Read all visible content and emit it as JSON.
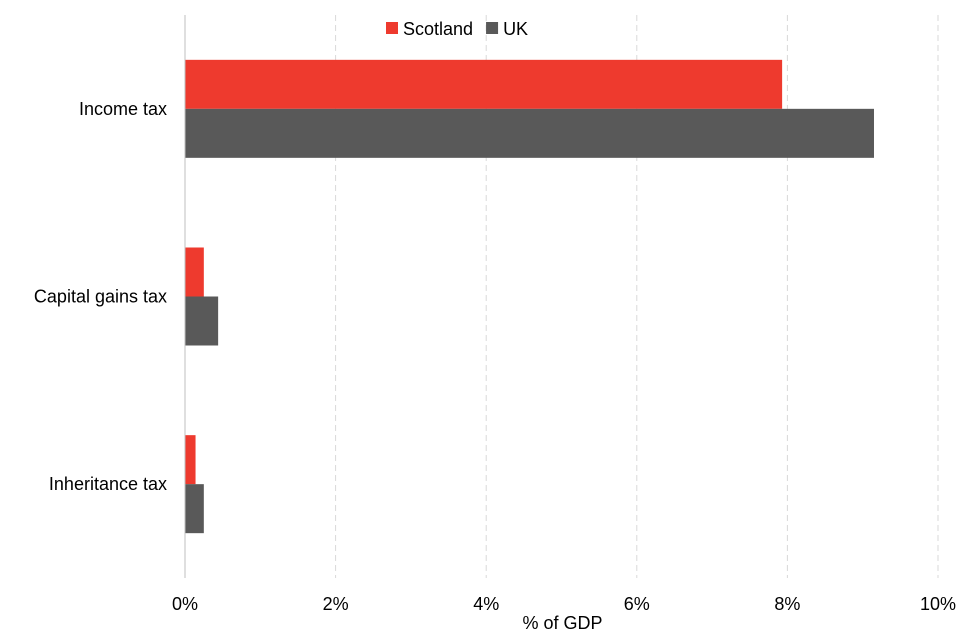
{
  "chart_data": {
    "type": "bar",
    "orientation": "horizontal",
    "categories": [
      "Income tax",
      "Capital gains tax",
      "Inheritance tax"
    ],
    "series": [
      {
        "name": "Scotland",
        "color": "#EE3A2E",
        "values": [
          7.93,
          0.25,
          0.14
        ]
      },
      {
        "name": "UK",
        "color": "#595959",
        "values": [
          9.15,
          0.44,
          0.25
        ]
      }
    ],
    "xlabel": "% of GDP",
    "ylabel": "",
    "xlim": [
      0,
      10
    ],
    "xticks": [
      0,
      2,
      4,
      6,
      8,
      10
    ],
    "xtick_labels": [
      "0%",
      "2%",
      "4%",
      "6%",
      "8%",
      "10%"
    ],
    "grid": "vertical dashed",
    "legend": {
      "position": "top-center",
      "entries": [
        "Scotland",
        "UK"
      ]
    }
  }
}
